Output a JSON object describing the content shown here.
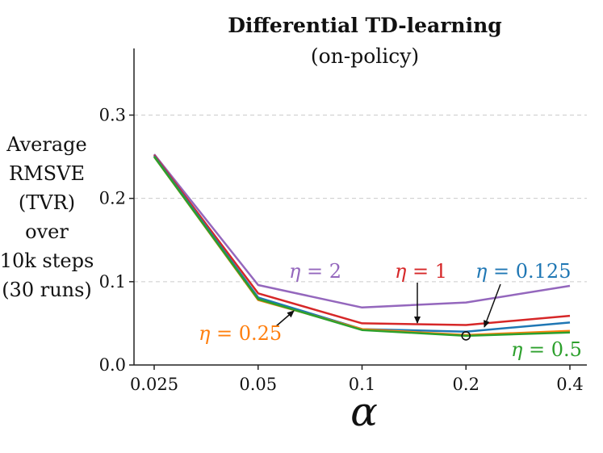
{
  "chart_data": {
    "type": "line",
    "title": "Differential TD-learning",
    "subtitle": "(on-policy)",
    "ylabel_lines": [
      "Average",
      "RMSVE",
      "(TVR)",
      "over",
      "10k steps",
      "(30 runs)"
    ],
    "xlabel": "α",
    "categories": [
      "0.025",
      "0.05",
      "0.1",
      "0.2",
      "0.4"
    ],
    "ylim": [
      0.0,
      0.38
    ],
    "yticks": [
      0.0,
      0.1,
      0.2,
      0.3
    ],
    "ytick_labels": [
      "0.0",
      "0.1",
      "0.2",
      "0.3"
    ],
    "grid": "horizontal dashed",
    "series": [
      {
        "name": "η = 2",
        "eta": "η",
        "value_text": " = 2",
        "color": "#9467bd",
        "values": [
          0.253,
          0.096,
          0.069,
          0.075,
          0.095
        ]
      },
      {
        "name": "η = 1",
        "eta": "η",
        "value_text": " = 1",
        "color": "#d62728",
        "values": [
          0.252,
          0.086,
          0.05,
          0.048,
          0.059
        ]
      },
      {
        "name": "η = 0.125",
        "eta": "η",
        "value_text": " = 0.125",
        "color": "#1f77b4",
        "values": [
          0.251,
          0.081,
          0.043,
          0.04,
          0.051
        ]
      },
      {
        "name": "η = 0.25",
        "eta": "η",
        "value_text": " = 0.25",
        "color": "#ff7f0e",
        "values": [
          0.25,
          0.078,
          0.043,
          0.036,
          0.041
        ]
      },
      {
        "name": "η = 0.5",
        "eta": "η",
        "value_text": " = 0.5",
        "color": "#2ca02c",
        "values": [
          0.25,
          0.079,
          0.042,
          0.035,
          0.039
        ]
      }
    ],
    "marker": {
      "x": "0.2",
      "y": 0.035,
      "shape": "open-circle"
    }
  }
}
